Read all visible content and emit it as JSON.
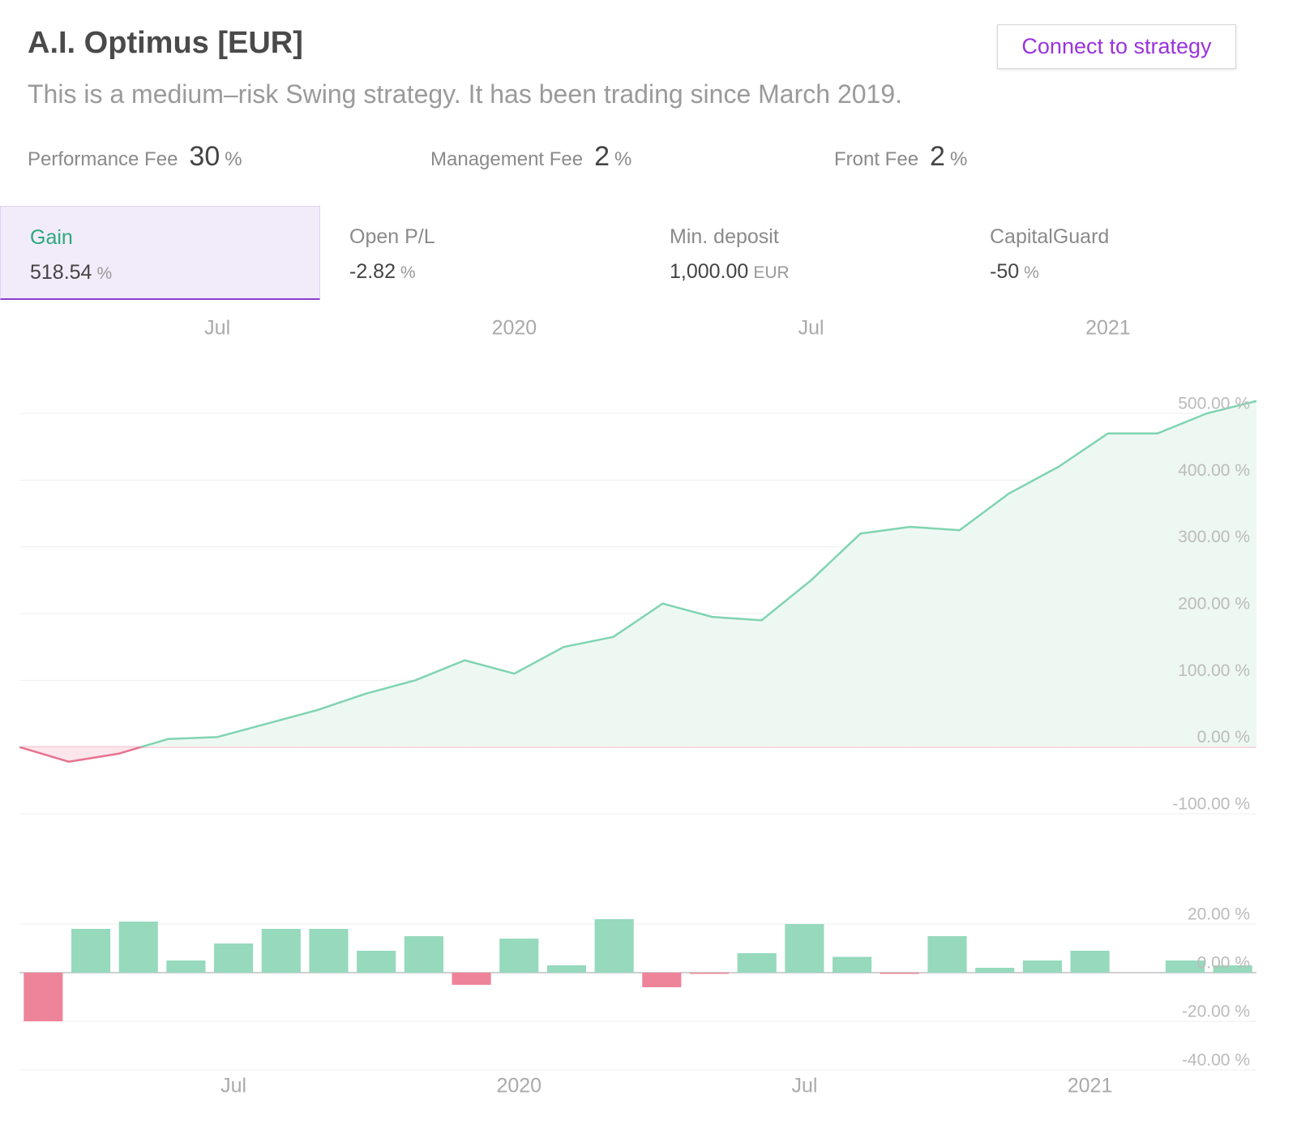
{
  "header": {
    "title": "A.I. Optimus [EUR]",
    "subtitle": "This is a medium–risk Swing strategy. It has been trading since March 2019.",
    "button": "Connect to strategy"
  },
  "fees": [
    {
      "label": "Performance Fee",
      "value": "30",
      "unit": "%"
    },
    {
      "label": "Management Fee",
      "value": "2",
      "unit": "%"
    },
    {
      "label": "Front Fee",
      "value": "2",
      "unit": "%"
    }
  ],
  "stats": [
    {
      "label": "Gain",
      "value": "518.54",
      "unit": "%"
    },
    {
      "label": "Open P/L",
      "value": "-2.82",
      "unit": "%"
    },
    {
      "label": "Min. deposit",
      "value": "1,000.00",
      "unit": "EUR"
    },
    {
      "label": "CapitalGuard",
      "value": "-50",
      "unit": "%"
    }
  ],
  "chart_data": [
    {
      "type": "line",
      "x": [
        "2019-03",
        "2019-04",
        "2019-05",
        "2019-06",
        "2019-07",
        "2019-08",
        "2019-09",
        "2019-10",
        "2019-11",
        "2019-12",
        "2020-01",
        "2020-02",
        "2020-03",
        "2020-04",
        "2020-05",
        "2020-06",
        "2020-07",
        "2020-08",
        "2020-09",
        "2020-10",
        "2020-11",
        "2020-12",
        "2021-01",
        "2021-02",
        "2021-03",
        "2021-04"
      ],
      "values": [
        0,
        -22,
        -10,
        12,
        15,
        35,
        55,
        80,
        100,
        130,
        110,
        150,
        165,
        215,
        195,
        190,
        250,
        320,
        330,
        325,
        380,
        420,
        470,
        470,
        500,
        518.54
      ],
      "color": "#80d4b1",
      "negative_color": "#e8728f",
      "xlim": [
        "2019-03",
        "2021-04"
      ],
      "xticks": [
        {
          "value": "2019-07",
          "label": "Jul"
        },
        {
          "value": "2020-01",
          "label": "2020"
        },
        {
          "value": "2020-07",
          "label": "Jul"
        },
        {
          "value": "2021-01",
          "label": "2021"
        }
      ],
      "ylim": [
        -100,
        500
      ],
      "yticks": [
        {
          "value": 500,
          "label": "500.00 %"
        },
        {
          "value": 400,
          "label": "400.00 %"
        },
        {
          "value": 300,
          "label": "300.00 %"
        },
        {
          "value": 200,
          "label": "200.00 %"
        },
        {
          "value": 100,
          "label": "100.00 %"
        },
        {
          "value": 0,
          "label": "0.00 %"
        },
        {
          "value": -100,
          "label": "-100.00 %"
        }
      ],
      "grid": true
    },
    {
      "type": "bar",
      "x": [
        "2019-03",
        "2019-04",
        "2019-05",
        "2019-06",
        "2019-07",
        "2019-08",
        "2019-09",
        "2019-10",
        "2019-11",
        "2019-12",
        "2020-01",
        "2020-02",
        "2020-03",
        "2020-04",
        "2020-05",
        "2020-06",
        "2020-07",
        "2020-08",
        "2020-09",
        "2020-10",
        "2020-11",
        "2020-12",
        "2021-01",
        "2021-02",
        "2021-03",
        "2021-04"
      ],
      "values": [
        -20,
        18,
        21,
        5,
        12,
        18,
        18,
        9,
        15,
        -5,
        14,
        3,
        22,
        -6,
        -0.5,
        8,
        20,
        6.5,
        -0.5,
        15,
        2,
        5,
        9,
        0,
        5,
        3
      ],
      "color": "#96d9bd",
      "negative_color": "#ee8499",
      "xticks": [
        {
          "value": "2019-07",
          "label": "Jul"
        },
        {
          "value": "2020-01",
          "label": "2020"
        },
        {
          "value": "2020-07",
          "label": "Jul"
        },
        {
          "value": "2021-01",
          "label": "2021"
        }
      ],
      "ylim": [
        -40,
        20
      ],
      "yticks": [
        {
          "value": 20,
          "label": "20.00 %"
        },
        {
          "value": 0,
          "label": "0.00 %"
        },
        {
          "value": -20,
          "label": "-20.00 %"
        },
        {
          "value": -40,
          "label": "-40.00 %"
        }
      ],
      "grid": true
    }
  ]
}
